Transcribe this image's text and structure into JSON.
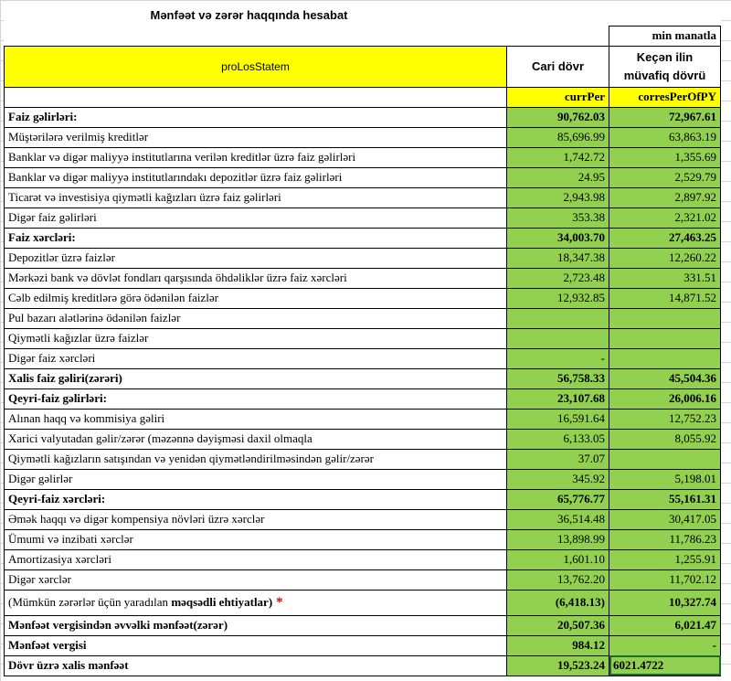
{
  "header": {
    "title": "Mənfəət və zərər haqqında hesabat",
    "unit": "min manatla"
  },
  "columns": {
    "label": "proLosStatem",
    "current": "Cari dövr",
    "previous": "Keçən ilin müvafiq dövrü"
  },
  "codes": {
    "current": "currPer",
    "previous": "corresPerOfPY"
  },
  "rows": [
    {
      "label": "Faiz gəlirləri:",
      "current": "90,762.03",
      "previous": "72,967.61",
      "bold": true
    },
    {
      "label": "Müştərilərə verilmiş kreditlər",
      "current": "85,696.99",
      "previous": "63,863.19"
    },
    {
      "label": "Banklar və digər maliyyə institutlarına verilən kreditlər üzrə faiz gəlirləri",
      "current": "1,742.72",
      "previous": "1,355.69"
    },
    {
      "label": "Banklar və digər maliyyə institutlarındakı depozitlər üzrə faiz gəlirləri",
      "current": "24.95",
      "previous": "2,529.79"
    },
    {
      "label": "Ticarət və investisiya qiymətli kağızları üzrə faiz gəlirləri",
      "current": "2,943.98",
      "previous": "2,897.92"
    },
    {
      "label": "Digər faiz gəlirləri",
      "current": "353.38",
      "previous": "2,321.02"
    },
    {
      "label": "Faiz xərcləri:",
      "current": "34,003.70",
      "previous": "27,463.25",
      "bold": true
    },
    {
      "label": "Depozitlər üzrə faizlər",
      "current": "18,347.38",
      "previous": "12,260.22"
    },
    {
      "label": "Mərkəzi bank və dövlət fondları qarşısında öhdəliklər üzrə faiz xərcləri",
      "current": "2,723.48",
      "previous": "331.51"
    },
    {
      "label": "Cəlb edilmiş kreditlərə görə ödənilən faizlər",
      "current": "12,932.85",
      "previous": "14,871.52"
    },
    {
      "label": "Pul bazarı alətlərinə ödənilən faizlər",
      "current": null,
      "previous": null
    },
    {
      "label": "Qiymətli kağızlar üzrə faizlər",
      "current": null,
      "previous": null
    },
    {
      "label": "Digər faiz xərcləri",
      "current": "-",
      "previous": null
    },
    {
      "label": "Xalis faiz gəliri(zərəri)",
      "current": "56,758.33",
      "previous": "45,504.36",
      "bold": true
    },
    {
      "label": "Qeyri-faiz gəlirləri:",
      "current": "23,107.68",
      "previous": "26,006.16",
      "bold": true
    },
    {
      "label": "Alınan haqq və kommisiya gəliri",
      "current": "16,591.64",
      "previous": "12,752.23"
    },
    {
      "label": "Xarici valyutadan gəlir/zərər (məzənnə dəyişməsi daxil olmaqla",
      "current": "6,133.05",
      "previous": "8,055.92"
    },
    {
      "label": "Qiymətli kağızların satışından və yenidən qiymətləndirilməsindən gəlir/zərər",
      "current": "37.07",
      "previous": null
    },
    {
      "label": "Digər gəlirlər",
      "current": "345.92",
      "previous": "5,198.01"
    },
    {
      "label": "Qeyri-faiz xərcləri:",
      "current": "65,776.77",
      "previous": "55,161.31",
      "bold": true
    },
    {
      "label": "Əmək haqqı və digər kompensiya növləri üzrə xərclər",
      "current": "36,514.48",
      "previous": "30,417.05"
    },
    {
      "label": "Ümumi və inzibati xərclər",
      "current": "13,898.99",
      "previous": "11,786.23"
    },
    {
      "label": "Amortizasiya xərcləri",
      "current": "1,601.10",
      "previous": "1,255.91"
    },
    {
      "label": "Digər xərclər",
      "current": "13,762.20",
      "previous": "11,702.12"
    },
    {
      "label": "(Mümkün zərərlər üçün yaradılan",
      "label_bold": "məqsədli ehtiyatlar)",
      "note": "*",
      "current": "(6,418.13)",
      "previous": "10,327.74",
      "bold_values": true,
      "tall": true
    },
    {
      "label": "Mənfəət vergisindən əvvəlki mənfəət(zərər)",
      "current": "20,507.36",
      "previous": "6,021.47",
      "bold": true
    },
    {
      "label": "Mənfəət vergisi",
      "current": "984.12",
      "previous": "-",
      "bold": true
    },
    {
      "label": "Dövr üzrə xalis mənfəət",
      "current": "19,523.24",
      "previous": "6021.4722",
      "bold": true,
      "selected_previous": true
    }
  ]
}
